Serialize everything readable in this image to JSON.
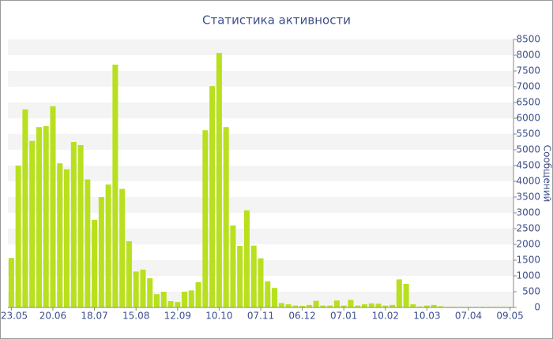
{
  "chart_data": {
    "type": "bar",
    "title": "Статистика активности",
    "y_label": "Сообщений",
    "color": "#b8e01e",
    "grid": true,
    "y_axis_side": "right",
    "categories": [
      "23.05",
      null,
      null,
      null,
      null,
      null,
      "20.06",
      null,
      null,
      null,
      null,
      null,
      "18.07",
      null,
      null,
      null,
      null,
      null,
      "15.08",
      null,
      null,
      null,
      null,
      null,
      "12.09",
      null,
      null,
      null,
      null,
      null,
      "10.10",
      null,
      null,
      null,
      null,
      null,
      "07.11",
      null,
      null,
      null,
      null,
      null,
      "06.12",
      null,
      null,
      null,
      null,
      null,
      "07.01",
      null,
      null,
      null,
      null,
      null,
      "10.02",
      null,
      null,
      null,
      null,
      null,
      "10.03",
      null,
      null,
      null,
      null,
      null,
      "07.04",
      null,
      null,
      null,
      null,
      null,
      "09.05"
    ],
    "values": [
      1570,
      4500,
      6280,
      5280,
      5720,
      5750,
      6380,
      4570,
      4380,
      5250,
      5150,
      4060,
      2780,
      3500,
      3900,
      7700,
      3760,
      2100,
      1140,
      1200,
      930,
      420,
      500,
      200,
      170,
      500,
      540,
      800,
      5620,
      7020,
      8070,
      5720,
      2600,
      1950,
      3080,
      1960,
      1560,
      830,
      620,
      140,
      100,
      60,
      50,
      80,
      210,
      60,
      60,
      220,
      60,
      240,
      60,
      100,
      130,
      120,
      60,
      80,
      890,
      750,
      100,
      30,
      60,
      80,
      40,
      20,
      20,
      20,
      20,
      20,
      20,
      20,
      20,
      20,
      20
    ],
    "ylim": [
      0,
      8500
    ],
    "yticks": [
      0,
      500,
      1000,
      1500,
      2000,
      2500,
      3000,
      3500,
      4000,
      4500,
      5000,
      5500,
      6000,
      6500,
      7000,
      7500,
      8000,
      8500
    ]
  }
}
